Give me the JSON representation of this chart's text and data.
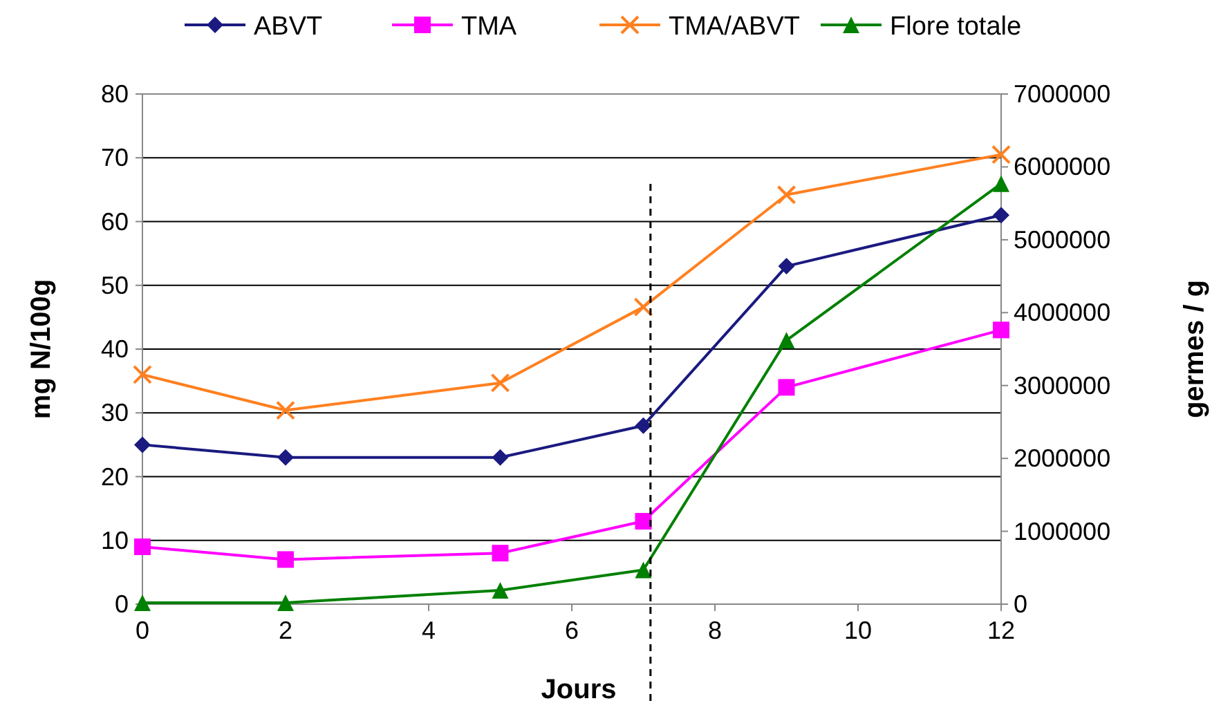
{
  "chart_data": {
    "type": "line",
    "xlabel": "Jours",
    "ylabel": "mg N/100g",
    "y2label": "germes / g",
    "x": [
      0,
      2,
      5,
      7,
      9,
      12
    ],
    "xlim": [
      0,
      12
    ],
    "xticks": [
      0,
      2,
      4,
      6,
      8,
      10,
      12
    ],
    "ylim": [
      0,
      80
    ],
    "yticks": [
      0,
      10,
      20,
      30,
      40,
      50,
      60,
      70,
      80
    ],
    "y2lim": [
      0,
      7000000
    ],
    "y2ticks": [
      0,
      1000000,
      2000000,
      3000000,
      4000000,
      5000000,
      6000000,
      7000000
    ],
    "grid": "y",
    "legend": "top",
    "line_style": "solid",
    "series": [
      {
        "name": "ABVT",
        "color": "#1a1a80",
        "marker": "diamond",
        "values": [
          25,
          23,
          23,
          28,
          53,
          61
        ]
      },
      {
        "name": "TMA",
        "color": "#ff00ff",
        "marker": "square",
        "values": [
          9,
          7,
          8,
          13,
          34,
          43
        ]
      },
      {
        "name": "TMA/ABVT",
        "color": "#ff8020",
        "marker": "cross",
        "values": [
          36,
          30.4,
          34.7,
          46.6,
          64.2,
          70.5
        ]
      },
      {
        "name": "Flore totale",
        "color": "#008000",
        "marker": "triangle",
        "axis": "y2",
        "values": [
          20000,
          20000,
          190000,
          470000,
          3620000,
          5770000
        ]
      }
    ],
    "ref_lines": [
      {
        "axis": "x",
        "value": 7.1,
        "color": "#000000",
        "line_style": "dashed"
      }
    ]
  }
}
